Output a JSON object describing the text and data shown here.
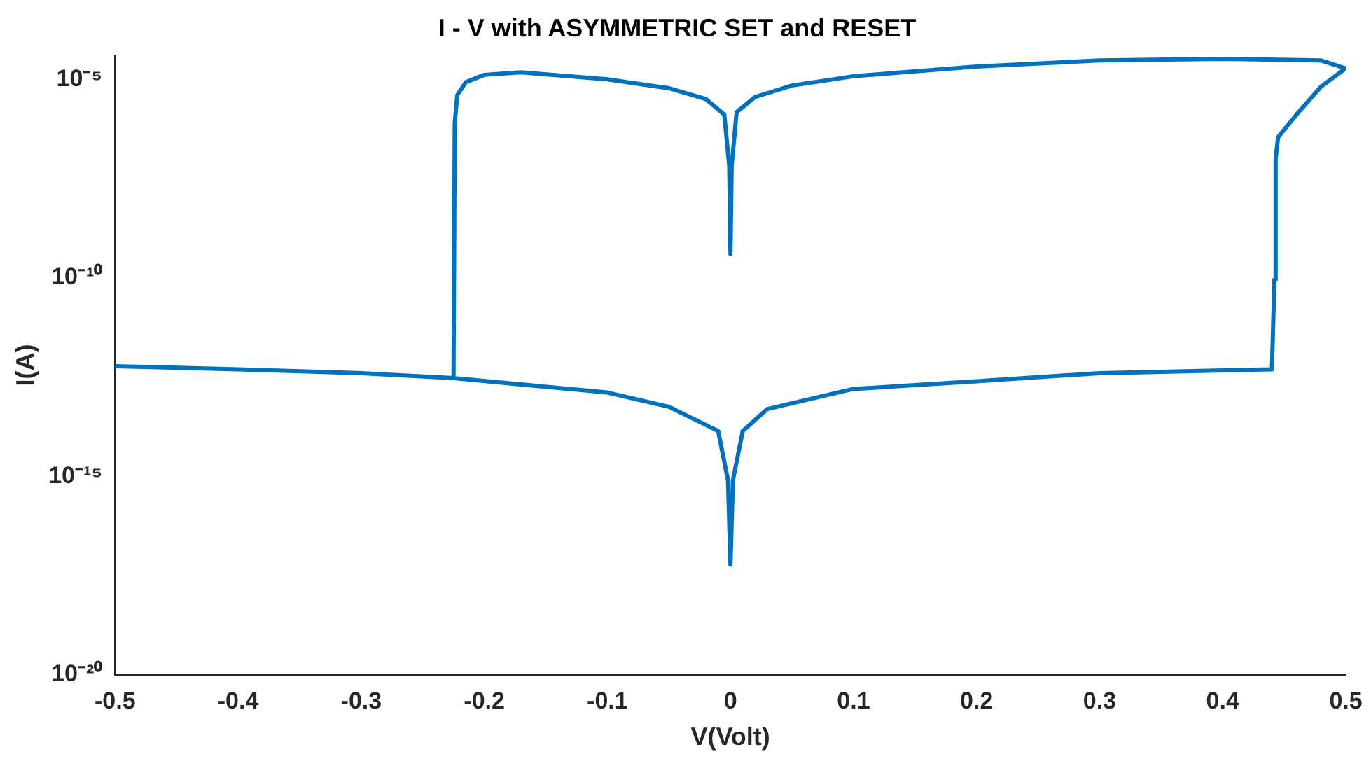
{
  "chart_data": {
    "type": "line",
    "title": "I - V with ASYMMETRIC SET and RESET",
    "xlabel": "V(Volt)",
    "ylabel": "I(A)",
    "log": "y",
    "grid": false,
    "legend": false,
    "marker": "none",
    "line_style": "solid",
    "xlim": [
      -0.5,
      0.5
    ],
    "xticks": [
      -0.5,
      -0.4,
      -0.3,
      -0.2,
      -0.1,
      0,
      0.1,
      0.2,
      0.3,
      0.4,
      0.5
    ],
    "ylim": [
      1e-20,
      4e-05
    ],
    "yticks": [
      {
        "value": 1e-20,
        "label": "10⁻²⁰"
      },
      {
        "value": 1e-15,
        "label": "10⁻¹⁵"
      },
      {
        "value": 1e-10,
        "label": "10⁻¹⁰"
      },
      {
        "value": 1e-05,
        "label": "10⁻⁵"
      }
    ],
    "series": [
      {
        "color": "#0072bd",
        "x": [
          -0.5,
          -0.4,
          -0.3,
          -0.225,
          -0.1,
          -0.05,
          -0.01,
          -0.002,
          0,
          0.002,
          0.01,
          0.03,
          0.1,
          0.2,
          0.3,
          0.44,
          0.442,
          0.443,
          0.445,
          0.46,
          0.48,
          0.5,
          0.48,
          0.4,
          0.3,
          0.2,
          0.1,
          0.05,
          0.02,
          0.005,
          0.001,
          0,
          -0.001,
          -0.005,
          -0.02,
          -0.05,
          -0.1,
          -0.17,
          -0.2,
          -0.215,
          -0.222,
          -0.224,
          -0.225
        ],
        "values": [
          6e-13,
          5e-13,
          4e-13,
          3e-13,
          1.3e-13,
          5.7e-14,
          1.4e-14,
          8e-16,
          6e-18,
          8e-16,
          1.4e-14,
          5e-14,
          1.6e-13,
          2.5e-13,
          4e-13,
          5e-13,
          9e-11,
          1e-07,
          3.5e-07,
          1.3e-06,
          6.6e-06,
          1.9e-05,
          3e-05,
          3.3e-05,
          3e-05,
          2.1e-05,
          1.2e-05,
          7e-06,
          3.6e-06,
          1.5e-06,
          6.8e-08,
          4e-10,
          6.8e-08,
          1.3e-06,
          3.2e-06,
          6e-06,
          1e-05,
          1.5e-05,
          1.3e-05,
          8.5e-06,
          4e-06,
          8e-07,
          3e-13
        ]
      }
    ]
  }
}
